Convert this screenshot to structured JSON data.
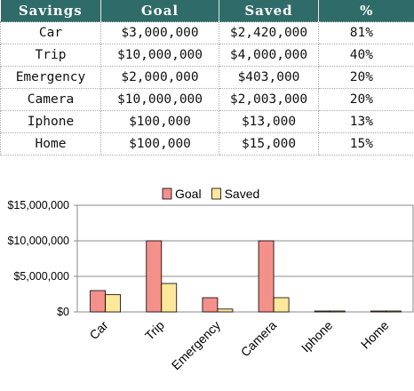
{
  "table": {
    "headers": [
      "Savings",
      "Goal",
      "Saved",
      "%"
    ],
    "rows": [
      [
        "Car",
        "$3,000,000",
        "$2,420,000",
        "81%"
      ],
      [
        "Trip",
        "$10,000,000",
        "$4,000,000",
        "40%"
      ],
      [
        "Emergency",
        "$2,000,000",
        "$403,000",
        "20%"
      ],
      [
        "Camera",
        "$10,000,000",
        "$2,003,000",
        "20%"
      ],
      [
        "Iphone",
        "$100,000",
        "$13,000",
        "13%"
      ],
      [
        "Home",
        "$100,000",
        "$15,000",
        "15%"
      ]
    ]
  },
  "chart_data": {
    "type": "bar",
    "categories": [
      "Car",
      "Trip",
      "Emergency",
      "Camera",
      "Iphone",
      "Home"
    ],
    "series": [
      {
        "name": "Goal",
        "values": [
          3000000,
          10000000,
          2000000,
          10000000,
          100000,
          100000
        ],
        "color": "#f4908a"
      },
      {
        "name": "Saved",
        "values": [
          2420000,
          4000000,
          403000,
          2003000,
          13000,
          15000
        ],
        "color": "#fde79a"
      }
    ],
    "yticks": [
      "$0",
      "$5,000,000",
      "$10,000,000",
      "$15,000,000"
    ],
    "ylim": [
      0,
      15000000
    ],
    "legend": "top",
    "grid": true
  }
}
